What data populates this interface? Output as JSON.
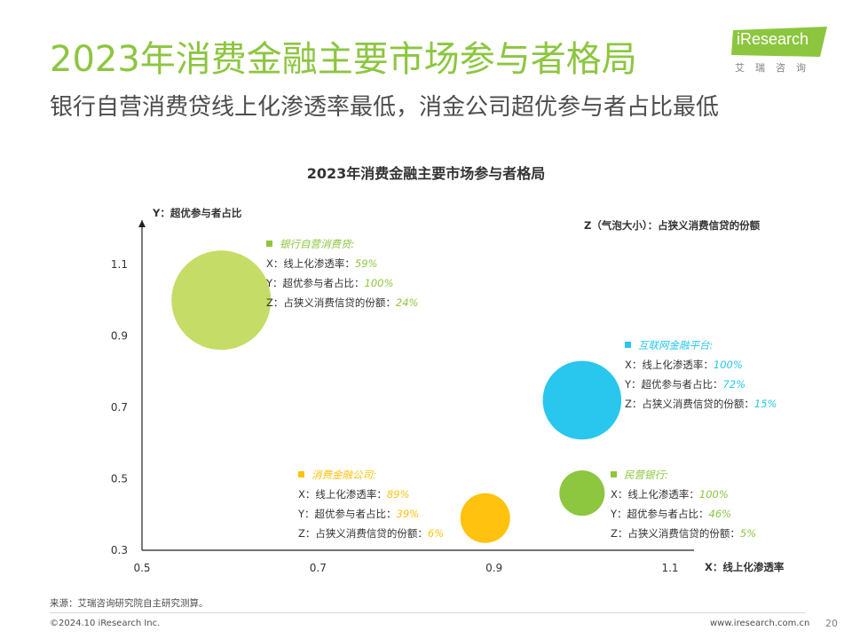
{
  "header": {
    "title": "2023年消费金融主要市场参与者格局",
    "subtitle": "银行自营消费贷线上化渗透率最低，消金公司超优参与者占比最低",
    "logo_text": "iResearch",
    "logo_sub": "艾瑞咨询"
  },
  "chart_data": {
    "type": "bubble",
    "title": "2023年消费金融主要市场参与者格局",
    "xlabel": "X：线上化渗透率",
    "ylabel": "Y：超优参与者占比",
    "zlabel": "Z（气泡大小）：占狭义消费信贷的份额",
    "xlim": [
      0.5,
      1.1
    ],
    "ylim": [
      0.3,
      1.1
    ],
    "xticks": [
      "0.5",
      "0.7",
      "0.9",
      "1.1"
    ],
    "yticks": [
      "0.3",
      "0.5",
      "0.7",
      "0.9",
      "1.1"
    ],
    "series": [
      {
        "name": "银行自营消费贷:",
        "x": 0.59,
        "y": 1.0,
        "z": 0.24,
        "x_label": "59%",
        "y_label": "100%",
        "z_label": "24%",
        "color": "#C5DD67"
      },
      {
        "name": "互联网金融平台:",
        "x": 1.0,
        "y": 0.72,
        "z": 0.15,
        "x_label": "100%",
        "y_label": "72%",
        "z_label": "15%",
        "color": "#29C6EE"
      },
      {
        "name": "消费金融公司:",
        "x": 0.89,
        "y": 0.39,
        "z": 0.06,
        "x_label": "89%",
        "y_label": "39%",
        "z_label": "6%",
        "color": "#FFC20E"
      },
      {
        "name": "民营银行:",
        "x": 1.0,
        "y": 0.46,
        "z": 0.05,
        "x_label": "100%",
        "y_label": "46%",
        "z_label": "5%",
        "color": "#8DC63F"
      }
    ]
  },
  "legend": {
    "x_prefix": "X：线上化渗透率：",
    "y_prefix": "Y：超优参与者占比：",
    "z_prefix": "Z：占狭义消费信贷的份额："
  },
  "footer": {
    "source": "来源：艾瑞咨询研究院自主研究测算。",
    "copyright": "©2024.10 iResearch Inc.",
    "website": "www.iresearch.com.cn",
    "page": "20"
  }
}
